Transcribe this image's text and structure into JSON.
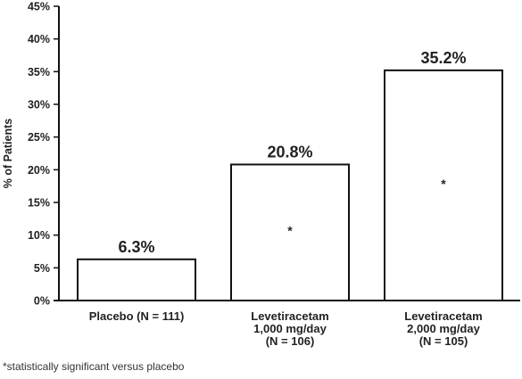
{
  "chart_data": {
    "type": "bar",
    "ylabel": "% of Patients",
    "ylim": [
      0,
      45
    ],
    "yticks": [
      "0%",
      "5%",
      "10%",
      "15%",
      "20%",
      "25%",
      "30%",
      "35%",
      "40%",
      "45%"
    ],
    "categories": [
      [
        "Placebo (N = 111)"
      ],
      [
        "Levetiracetam",
        "1,000 mg/day",
        "(N = 106)"
      ],
      [
        "Levetiracetam",
        "2,000 mg/day",
        "(N = 105)"
      ]
    ],
    "values": [
      6.3,
      20.8,
      35.2
    ],
    "data_labels": [
      "6.3%",
      "20.8%",
      "35.2%"
    ],
    "significance_markers": [
      "",
      "*",
      "*"
    ],
    "grid": false,
    "colors": {
      "bar_fill": "#ffffff",
      "bar_stroke": "#111111",
      "axis": "#111111"
    }
  },
  "footnote": "*statistically significant versus placebo"
}
